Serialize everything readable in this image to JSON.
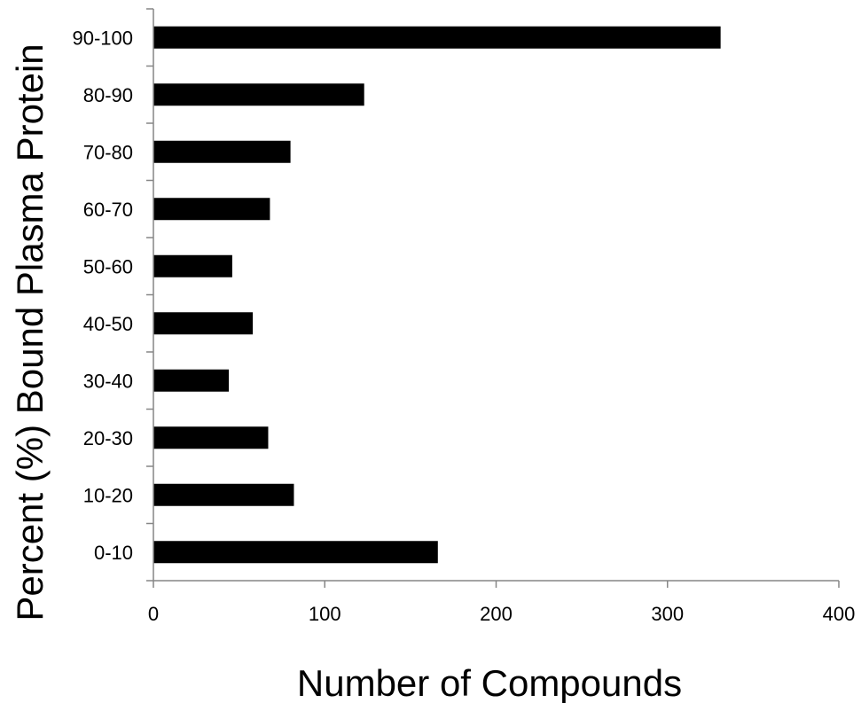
{
  "chart_data": {
    "type": "bar",
    "orientation": "horizontal",
    "categories": [
      "0-10",
      "10-20",
      "20-30",
      "30-40",
      "40-50",
      "50-60",
      "60-70",
      "70-80",
      "80-90",
      "90-100"
    ],
    "values": [
      166,
      82,
      67,
      44,
      58,
      46,
      68,
      80,
      123,
      331
    ],
    "xlabel": "Number of Compounds",
    "ylabel": "Percent (%) Bound Plasma Protein",
    "xlim": [
      0,
      400
    ],
    "xticks": [
      "0",
      "100",
      "200",
      "300",
      "400"
    ],
    "grid": false,
    "legend": "none",
    "bar_color": "#000000",
    "axis_color": "#868686"
  }
}
